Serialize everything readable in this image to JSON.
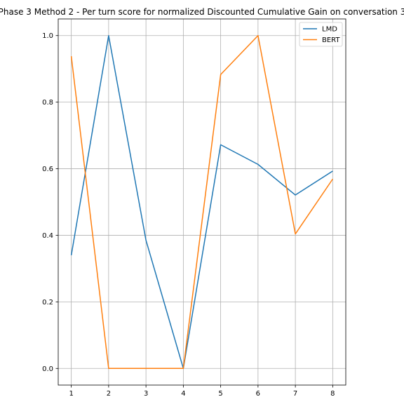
{
  "chart_data": {
    "type": "line",
    "title": "Phase 3 Method 2 - Per turn score for normalized Discounted Cumulative Gain on conversation 3",
    "xlabel": "",
    "ylabel": "",
    "x": [
      1,
      2,
      3,
      4,
      5,
      6,
      7,
      8
    ],
    "xlim": [
      0.65,
      8.35
    ],
    "ylim": [
      -0.05,
      1.05
    ],
    "xticks": [
      "1",
      "2",
      "3",
      "4",
      "5",
      "6",
      "7",
      "8"
    ],
    "yticks": [
      "0.0",
      "0.2",
      "0.4",
      "0.6",
      "0.8",
      "1.0"
    ],
    "grid": true,
    "legend_position": "top-right",
    "series": [
      {
        "name": "LMD",
        "color": "#1f77b4",
        "values": [
          0.34,
          1.0,
          0.385,
          0.0,
          0.672,
          0.613,
          0.521,
          0.593
        ]
      },
      {
        "name": "BERT",
        "color": "#ff7f0e",
        "values": [
          0.938,
          0.0,
          0.0,
          0.0,
          0.883,
          1.0,
          0.404,
          0.569
        ]
      }
    ]
  }
}
